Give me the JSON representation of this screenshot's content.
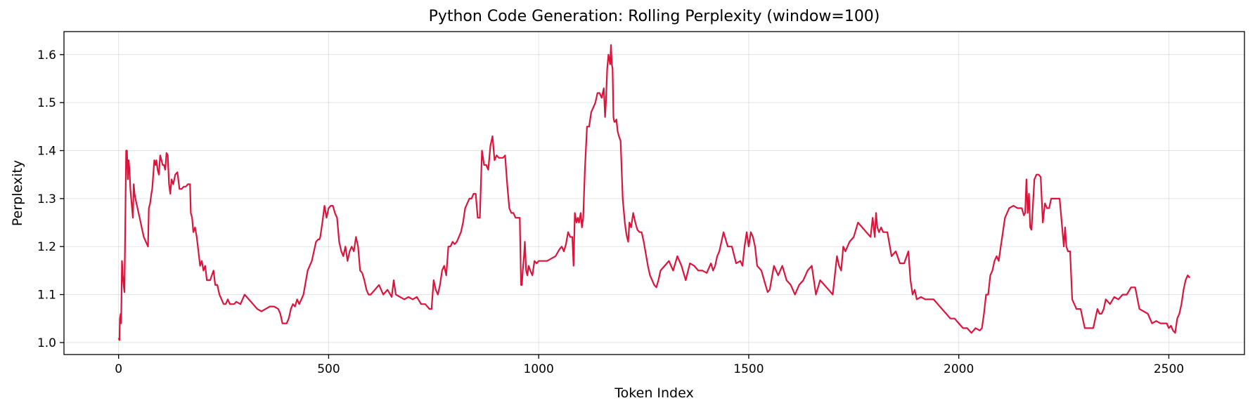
{
  "chart_data": {
    "type": "line",
    "title": "Python Code Generation: Rolling Perplexity (window=100)",
    "xlabel": "Token Index",
    "ylabel": "Perplexity",
    "xlim": [
      -130,
      2680
    ],
    "ylim": [
      0.975,
      1.648
    ],
    "xticks": [
      0,
      500,
      1000,
      1500,
      2000,
      2500
    ],
    "yticks": [
      1.0,
      1.1,
      1.2,
      1.3,
      1.4,
      1.5,
      1.6
    ],
    "ytick_labels": [
      "1.0",
      "1.1",
      "1.2",
      "1.3",
      "1.4",
      "1.5",
      "1.6"
    ],
    "grid": true,
    "line_color": "#dc143c",
    "series": [
      {
        "x": [
          0,
          2,
          3,
          5,
          6,
          8,
          10,
          12,
          14,
          16,
          18,
          20,
          22,
          24,
          26,
          28,
          30,
          32,
          34,
          36,
          38,
          40,
          45,
          50,
          55,
          60,
          65,
          70,
          72,
          75,
          78,
          80,
          85,
          88,
          90,
          93,
          96,
          99,
          102,
          105,
          108,
          111,
          114,
          117,
          120,
          123,
          126,
          130,
          135,
          140,
          145,
          150,
          155,
          160,
          165,
          170,
          172,
          175,
          178,
          182,
          186,
          190,
          194,
          198,
          202,
          206,
          210,
          214,
          218,
          222,
          226,
          230,
          235,
          240,
          245,
          250,
          255,
          260,
          265,
          270,
          275,
          280,
          290,
          300,
          310,
          320,
          330,
          340,
          350,
          360,
          370,
          380,
          385,
          390,
          395,
          400,
          405,
          410,
          415,
          420,
          425,
          430,
          435,
          440,
          450,
          460,
          470,
          475,
          478,
          480,
          485,
          490,
          495,
          500,
          505,
          510,
          515,
          520,
          525,
          530,
          535,
          540,
          545,
          550,
          555,
          560,
          565,
          570,
          575,
          580,
          585,
          590,
          595,
          600,
          610,
          620,
          630,
          640,
          650,
          655,
          660,
          670,
          680,
          690,
          700,
          710,
          720,
          730,
          740,
          745,
          750,
          755,
          760,
          765,
          770,
          775,
          780,
          785,
          790,
          795,
          800,
          805,
          810,
          815,
          820,
          825,
          830,
          835,
          840,
          845,
          850,
          855,
          860,
          865,
          870,
          875,
          880,
          885,
          890,
          895,
          900,
          905,
          910,
          915,
          920,
          925,
          930,
          935,
          940,
          945,
          950,
          955,
          958,
          960,
          962,
          965,
          967,
          970,
          973,
          976,
          980,
          985,
          990,
          995,
          1000,
          1010,
          1020,
          1030,
          1040,
          1050,
          1055,
          1060,
          1065,
          1070,
          1075,
          1080,
          1083,
          1086,
          1090,
          1093,
          1096,
          1100,
          1103,
          1106,
          1110,
          1115,
          1120,
          1125,
          1130,
          1135,
          1140,
          1145,
          1150,
          1155,
          1158,
          1160,
          1163,
          1166,
          1170,
          1172,
          1174,
          1176,
          1178,
          1180,
          1182,
          1185,
          1188,
          1191,
          1195,
          1200,
          1205,
          1208,
          1210,
          1213,
          1216,
          1220,
          1225,
          1230,
          1235,
          1240,
          1245,
          1250,
          1260,
          1265,
          1270,
          1275,
          1280,
          1285,
          1290,
          1300,
          1310,
          1320,
          1330,
          1340,
          1350,
          1360,
          1370,
          1380,
          1390,
          1400,
          1410,
          1415,
          1420,
          1425,
          1430,
          1440,
          1450,
          1460,
          1470,
          1480,
          1485,
          1490,
          1495,
          1500,
          1505,
          1510,
          1515,
          1520,
          1530,
          1540,
          1545,
          1550,
          1560,
          1570,
          1580,
          1590,
          1600,
          1610,
          1620,
          1630,
          1640,
          1650,
          1660,
          1670,
          1680,
          1690,
          1700,
          1710,
          1715,
          1720,
          1725,
          1730,
          1740,
          1750,
          1760,
          1770,
          1780,
          1790,
          1795,
          1800,
          1803,
          1806,
          1810,
          1815,
          1820,
          1830,
          1840,
          1850,
          1860,
          1870,
          1880,
          1885,
          1890,
          1895,
          1900,
          1910,
          1920,
          1930,
          1940,
          1950,
          1960,
          1970,
          1980,
          1990,
          2000,
          2010,
          2020,
          2030,
          2040,
          2050,
          2055,
          2060,
          2065,
          2070,
          2075,
          2080,
          2085,
          2090,
          2095,
          2100,
          2110,
          2120,
          2130,
          2140,
          2150,
          2155,
          2158,
          2161,
          2164,
          2167,
          2170,
          2173,
          2176,
          2180,
          2185,
          2190,
          2195,
          2200,
          2205,
          2210,
          2215,
          2220,
          2230,
          2240,
          2250,
          2253,
          2256,
          2260,
          2265,
          2270,
          2275,
          2280,
          2290,
          2300,
          2310,
          2320,
          2330,
          2335,
          2340,
          2345,
          2350,
          2360,
          2370,
          2380,
          2390,
          2400,
          2410,
          2420,
          2430,
          2440,
          2450,
          2460,
          2470,
          2480,
          2490,
          2495,
          2500,
          2505,
          2510,
          2515,
          2520,
          2525,
          2530,
          2535,
          2540,
          2545,
          2550
        ],
        "y": [
          1.01,
          1.005,
          1.05,
          1.06,
          1.04,
          1.17,
          1.14,
          1.12,
          1.105,
          1.25,
          1.4,
          1.4,
          1.34,
          1.38,
          1.36,
          1.32,
          1.3,
          1.28,
          1.26,
          1.33,
          1.31,
          1.3,
          1.28,
          1.26,
          1.24,
          1.22,
          1.21,
          1.2,
          1.28,
          1.29,
          1.31,
          1.32,
          1.38,
          1.37,
          1.38,
          1.36,
          1.35,
          1.39,
          1.38,
          1.37,
          1.37,
          1.36,
          1.395,
          1.39,
          1.33,
          1.31,
          1.34,
          1.33,
          1.35,
          1.355,
          1.32,
          1.32,
          1.325,
          1.325,
          1.33,
          1.33,
          1.27,
          1.26,
          1.23,
          1.24,
          1.22,
          1.19,
          1.16,
          1.17,
          1.15,
          1.16,
          1.13,
          1.13,
          1.13,
          1.14,
          1.15,
          1.12,
          1.12,
          1.1,
          1.09,
          1.08,
          1.08,
          1.09,
          1.08,
          1.08,
          1.08,
          1.085,
          1.08,
          1.1,
          1.09,
          1.08,
          1.07,
          1.065,
          1.07,
          1.075,
          1.075,
          1.07,
          1.06,
          1.04,
          1.04,
          1.04,
          1.05,
          1.07,
          1.08,
          1.075,
          1.09,
          1.08,
          1.09,
          1.1,
          1.15,
          1.17,
          1.21,
          1.215,
          1.215,
          1.22,
          1.25,
          1.285,
          1.26,
          1.28,
          1.285,
          1.285,
          1.27,
          1.26,
          1.21,
          1.19,
          1.18,
          1.2,
          1.17,
          1.19,
          1.2,
          1.19,
          1.22,
          1.2,
          1.15,
          1.145,
          1.13,
          1.11,
          1.1,
          1.1,
          1.11,
          1.12,
          1.1,
          1.11,
          1.095,
          1.13,
          1.1,
          1.095,
          1.09,
          1.095,
          1.09,
          1.095,
          1.08,
          1.08,
          1.07,
          1.07,
          1.13,
          1.11,
          1.1,
          1.12,
          1.15,
          1.16,
          1.14,
          1.2,
          1.2,
          1.21,
          1.205,
          1.21,
          1.22,
          1.23,
          1.25,
          1.28,
          1.29,
          1.3,
          1.3,
          1.31,
          1.31,
          1.26,
          1.26,
          1.4,
          1.37,
          1.37,
          1.36,
          1.41,
          1.43,
          1.38,
          1.39,
          1.385,
          1.385,
          1.385,
          1.39,
          1.33,
          1.28,
          1.27,
          1.27,
          1.26,
          1.26,
          1.26,
          1.12,
          1.12,
          1.15,
          1.18,
          1.21,
          1.15,
          1.14,
          1.16,
          1.15,
          1.14,
          1.17,
          1.165,
          1.17,
          1.17,
          1.17,
          1.175,
          1.18,
          1.195,
          1.2,
          1.19,
          1.205,
          1.23,
          1.22,
          1.22,
          1.16,
          1.27,
          1.25,
          1.26,
          1.25,
          1.27,
          1.24,
          1.26,
          1.36,
          1.45,
          1.45,
          1.48,
          1.49,
          1.5,
          1.52,
          1.52,
          1.51,
          1.53,
          1.47,
          1.5,
          1.57,
          1.6,
          1.58,
          1.62,
          1.58,
          1.57,
          1.47,
          1.46,
          1.46,
          1.465,
          1.44,
          1.43,
          1.42,
          1.3,
          1.25,
          1.23,
          1.22,
          1.21,
          1.25,
          1.24,
          1.27,
          1.25,
          1.235,
          1.23,
          1.23,
          1.21,
          1.16,
          1.14,
          1.13,
          1.12,
          1.115,
          1.13,
          1.15,
          1.16,
          1.17,
          1.15,
          1.18,
          1.16,
          1.13,
          1.165,
          1.16,
          1.15,
          1.15,
          1.145,
          1.165,
          1.15,
          1.16,
          1.18,
          1.19,
          1.23,
          1.2,
          1.2,
          1.165,
          1.17,
          1.16,
          1.2,
          1.23,
          1.2,
          1.23,
          1.22,
          1.2,
          1.16,
          1.15,
          1.12,
          1.105,
          1.11,
          1.16,
          1.14,
          1.16,
          1.13,
          1.12,
          1.1,
          1.12,
          1.13,
          1.15,
          1.16,
          1.1,
          1.13,
          1.12,
          1.11,
          1.1,
          1.18,
          1.16,
          1.15,
          1.2,
          1.19,
          1.21,
          1.22,
          1.25,
          1.24,
          1.23,
          1.22,
          1.26,
          1.22,
          1.27,
          1.24,
          1.23,
          1.24,
          1.23,
          1.23,
          1.18,
          1.19,
          1.165,
          1.165,
          1.19,
          1.13,
          1.1,
          1.11,
          1.09,
          1.095,
          1.09,
          1.09,
          1.09,
          1.08,
          1.07,
          1.06,
          1.05,
          1.05,
          1.04,
          1.03,
          1.03,
          1.02,
          1.03,
          1.025,
          1.03,
          1.06,
          1.1,
          1.1,
          1.14,
          1.15,
          1.17,
          1.18,
          1.17,
          1.2,
          1.26,
          1.28,
          1.285,
          1.28,
          1.28,
          1.265,
          1.27,
          1.34,
          1.27,
          1.31,
          1.24,
          1.235,
          1.28,
          1.34,
          1.35,
          1.35,
          1.345,
          1.25,
          1.29,
          1.28,
          1.28,
          1.3,
          1.3,
          1.3,
          1.2,
          1.24,
          1.2,
          1.19,
          1.19,
          1.09,
          1.08,
          1.07,
          1.07,
          1.03,
          1.03,
          1.03,
          1.07,
          1.06,
          1.06,
          1.07,
          1.09,
          1.08,
          1.095,
          1.09,
          1.1,
          1.1,
          1.115,
          1.115,
          1.07,
          1.065,
          1.06,
          1.04,
          1.045,
          1.04,
          1.04,
          1.04,
          1.03,
          1.035,
          1.025,
          1.02,
          1.05,
          1.06,
          1.08,
          1.11,
          1.13,
          1.14,
          1.135
        ]
      }
    ]
  }
}
